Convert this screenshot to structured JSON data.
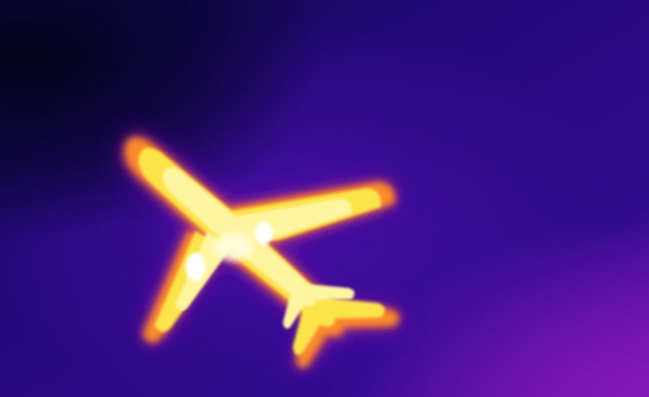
{
  "image": {
    "subject": "airplane-thermal-silhouette",
    "palette": {
      "sky_dark": "#05041f",
      "sky_indigo": "#220a7a",
      "sky_violet": "#3a0c9a",
      "sky_magenta": "#6a12b4",
      "glow_purple": "#8f1aa8",
      "glow_red": "#d93a5a",
      "glow_orange": "#f98a2c",
      "core_yellow": "#fbe44a",
      "core_pale": "#fff7b0",
      "hot_white": "#ffffff"
    }
  }
}
